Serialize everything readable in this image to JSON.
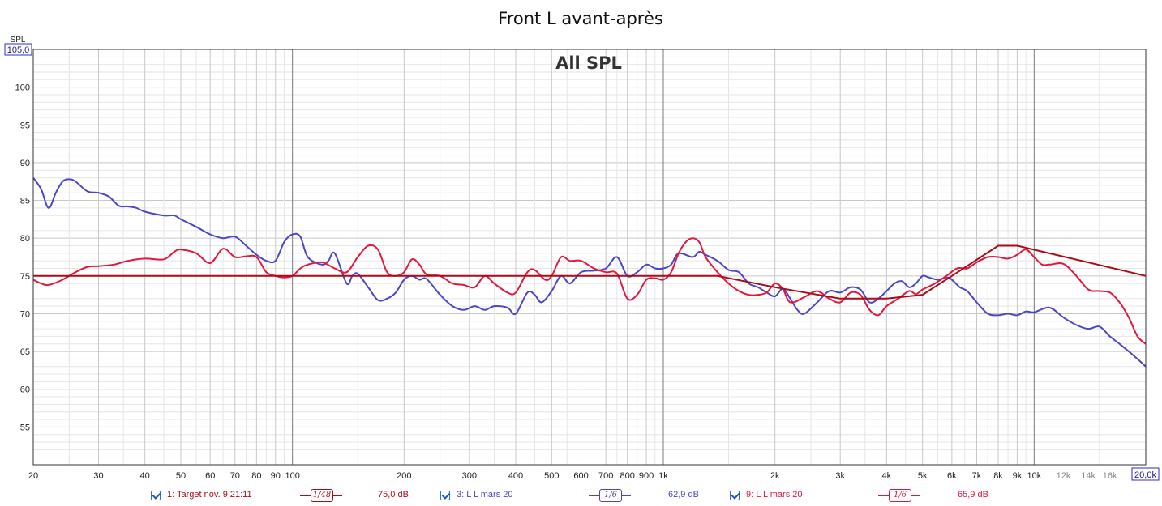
{
  "chart_data": {
    "type": "line",
    "title": "Front L avant-après",
    "subtitle": "All SPL",
    "ylabel": "SPL",
    "ylim": [
      50,
      105
    ],
    "ymax_label": "105,0",
    "xmax_label": "20,0k",
    "xlim": [
      20,
      20000
    ],
    "xscale": "log",
    "grid": true,
    "yticks": [
      {
        "value": 55,
        "label": "55"
      },
      {
        "value": 60,
        "label": "60"
      },
      {
        "value": 65,
        "label": "65"
      },
      {
        "value": 70,
        "label": "70"
      },
      {
        "value": 75,
        "label": "75"
      },
      {
        "value": 80,
        "label": "80"
      },
      {
        "value": 85,
        "label": "85"
      },
      {
        "value": 90,
        "label": "90"
      },
      {
        "value": 95,
        "label": "95"
      },
      {
        "value": 100,
        "label": "100"
      }
    ],
    "xticks": [
      {
        "value": 20,
        "label": "20"
      },
      {
        "value": 30,
        "label": "30"
      },
      {
        "value": 40,
        "label": "40"
      },
      {
        "value": 50,
        "label": "50"
      },
      {
        "value": 60,
        "label": "60"
      },
      {
        "value": 70,
        "label": "70"
      },
      {
        "value": 80,
        "label": "80"
      },
      {
        "value": 90,
        "label": "90"
      },
      {
        "value": 100,
        "label": "100"
      },
      {
        "value": 200,
        "label": "200"
      },
      {
        "value": 300,
        "label": "300"
      },
      {
        "value": 400,
        "label": "400"
      },
      {
        "value": 500,
        "label": "500"
      },
      {
        "value": 600,
        "label": "600"
      },
      {
        "value": 700,
        "label": "700"
      },
      {
        "value": 800,
        "label": "800"
      },
      {
        "value": 900,
        "label": "900"
      },
      {
        "value": 1000,
        "label": "1k"
      },
      {
        "value": 2000,
        "label": "2k"
      },
      {
        "value": 3000,
        "label": "3k"
      },
      {
        "value": 4000,
        "label": "4k"
      },
      {
        "value": 5000,
        "label": "5k"
      },
      {
        "value": 6000,
        "label": "6k"
      },
      {
        "value": 7000,
        "label": "7k"
      },
      {
        "value": 8000,
        "label": "8k"
      },
      {
        "value": 9000,
        "label": "9k"
      },
      {
        "value": 10000,
        "label": "10k"
      },
      {
        "value": 12000,
        "label": "12k",
        "minor": true
      },
      {
        "value": 14000,
        "label": "14k",
        "minor": true
      },
      {
        "value": 16000,
        "label": "16k",
        "minor": true
      }
    ],
    "series": [
      {
        "name": "1: Target nov. 9 21:11",
        "color": "#a80c18",
        "smoothing": "1/48",
        "level": "75,0 dB",
        "points": [
          [
            20,
            75
          ],
          [
            1400,
            75
          ],
          [
            2000,
            73.5
          ],
          [
            3000,
            72
          ],
          [
            4000,
            72
          ],
          [
            5000,
            72.5
          ],
          [
            6000,
            75
          ],
          [
            8000,
            79
          ],
          [
            9000,
            79
          ],
          [
            20000,
            75
          ]
        ]
      },
      {
        "name": "3: L L mars 20",
        "color": "#4b46c8",
        "smoothing": "1/6",
        "level": "62,9 dB",
        "points": [
          [
            20,
            88
          ],
          [
            21,
            86.5
          ],
          [
            22,
            84
          ],
          [
            23,
            86
          ],
          [
            24,
            87.5
          ],
          [
            25,
            87.8
          ],
          [
            26,
            87.5
          ],
          [
            28,
            86.2
          ],
          [
            30,
            86
          ],
          [
            32,
            85.5
          ],
          [
            34,
            84.3
          ],
          [
            36,
            84.2
          ],
          [
            38,
            84
          ],
          [
            40,
            83.5
          ],
          [
            45,
            83
          ],
          [
            48,
            83
          ],
          [
            50,
            82.5
          ],
          [
            55,
            81.5
          ],
          [
            60,
            80.5
          ],
          [
            65,
            80
          ],
          [
            70,
            80.2
          ],
          [
            75,
            79
          ],
          [
            80,
            77.8
          ],
          [
            85,
            77
          ],
          [
            90,
            77
          ],
          [
            95,
            79.5
          ],
          [
            100,
            80.5
          ],
          [
            105,
            80.2
          ],
          [
            110,
            77.5
          ],
          [
            120,
            76.5
          ],
          [
            125,
            77
          ],
          [
            130,
            78
          ],
          [
            140,
            74
          ],
          [
            145,
            75
          ],
          [
            150,
            75.3
          ],
          [
            160,
            73.5
          ],
          [
            170,
            71.8
          ],
          [
            180,
            72
          ],
          [
            190,
            72.8
          ],
          [
            200,
            74.5
          ],
          [
            210,
            75
          ],
          [
            220,
            74.5
          ],
          [
            230,
            74.6
          ],
          [
            250,
            72.5
          ],
          [
            270,
            71
          ],
          [
            290,
            70.5
          ],
          [
            310,
            71
          ],
          [
            330,
            70.5
          ],
          [
            350,
            71
          ],
          [
            380,
            70.8
          ],
          [
            400,
            70
          ],
          [
            430,
            72.8
          ],
          [
            450,
            72.5
          ],
          [
            470,
            71.5
          ],
          [
            500,
            73
          ],
          [
            530,
            75
          ],
          [
            560,
            74
          ],
          [
            600,
            75.5
          ],
          [
            650,
            75.7
          ],
          [
            700,
            76
          ],
          [
            750,
            77.5
          ],
          [
            800,
            75
          ],
          [
            850,
            75.5
          ],
          [
            900,
            76.5
          ],
          [
            950,
            76
          ],
          [
            1000,
            76
          ],
          [
            1050,
            76.5
          ],
          [
            1100,
            78
          ],
          [
            1200,
            77.5
          ],
          [
            1250,
            78.2
          ],
          [
            1300,
            77.8
          ],
          [
            1400,
            77
          ],
          [
            1500,
            75.8
          ],
          [
            1600,
            75.5
          ],
          [
            1700,
            74
          ],
          [
            1800,
            73.5
          ],
          [
            1900,
            72.8
          ],
          [
            2000,
            72.3
          ],
          [
            2100,
            73.3
          ],
          [
            2200,
            72
          ],
          [
            2300,
            70.5
          ],
          [
            2400,
            70
          ],
          [
            2600,
            71.5
          ],
          [
            2800,
            73
          ],
          [
            3000,
            72.8
          ],
          [
            3200,
            73.5
          ],
          [
            3400,
            73.2
          ],
          [
            3600,
            71.5
          ],
          [
            3800,
            72
          ],
          [
            4000,
            73
          ],
          [
            4200,
            74
          ],
          [
            4400,
            74.3
          ],
          [
            4600,
            73.5
          ],
          [
            4800,
            74
          ],
          [
            5000,
            75
          ],
          [
            5200,
            74.8
          ],
          [
            5500,
            74.5
          ],
          [
            5800,
            74.8
          ],
          [
            6000,
            74.5
          ],
          [
            6300,
            73.5
          ],
          [
            6600,
            73
          ],
          [
            7000,
            71.5
          ],
          [
            7500,
            70
          ],
          [
            8000,
            69.8
          ],
          [
            8500,
            70
          ],
          [
            9000,
            69.8
          ],
          [
            9500,
            70.3
          ],
          [
            10000,
            70.2
          ],
          [
            11000,
            70.8
          ],
          [
            12000,
            69.5
          ],
          [
            13000,
            68.5
          ],
          [
            14000,
            68
          ],
          [
            15000,
            68.3
          ],
          [
            16000,
            67
          ],
          [
            17000,
            66
          ],
          [
            18000,
            65
          ],
          [
            19000,
            64
          ],
          [
            20000,
            63
          ]
        ]
      },
      {
        "name": "9: L L mars 20",
        "color": "#e3173c",
        "smoothing": "1/6",
        "level": "65,9 dB",
        "points": [
          [
            20,
            74.5
          ],
          [
            21,
            74
          ],
          [
            22,
            73.8
          ],
          [
            24,
            74.5
          ],
          [
            26,
            75.5
          ],
          [
            28,
            76.2
          ],
          [
            30,
            76.3
          ],
          [
            33,
            76.5
          ],
          [
            36,
            77
          ],
          [
            40,
            77.3
          ],
          [
            45,
            77.2
          ],
          [
            48,
            78.2
          ],
          [
            50,
            78.5
          ],
          [
            55,
            78
          ],
          [
            60,
            76.7
          ],
          [
            65,
            78.6
          ],
          [
            70,
            77.5
          ],
          [
            75,
            77.6
          ],
          [
            80,
            77.5
          ],
          [
            85,
            75.5
          ],
          [
            90,
            75
          ],
          [
            95,
            74.8
          ],
          [
            100,
            75
          ],
          [
            105,
            76
          ],
          [
            110,
            76.5
          ],
          [
            120,
            76.8
          ],
          [
            130,
            76
          ],
          [
            140,
            75.5
          ],
          [
            150,
            77.5
          ],
          [
            160,
            79
          ],
          [
            170,
            78.5
          ],
          [
            180,
            75.5
          ],
          [
            190,
            75
          ],
          [
            200,
            75.5
          ],
          [
            210,
            77.2
          ],
          [
            220,
            76.5
          ],
          [
            230,
            75.2
          ],
          [
            250,
            75
          ],
          [
            270,
            74
          ],
          [
            290,
            73.8
          ],
          [
            310,
            73.5
          ],
          [
            330,
            75
          ],
          [
            350,
            74
          ],
          [
            380,
            72.8
          ],
          [
            400,
            72.8
          ],
          [
            430,
            75.5
          ],
          [
            450,
            75.8
          ],
          [
            480,
            74.5
          ],
          [
            500,
            75
          ],
          [
            530,
            77.5
          ],
          [
            560,
            77
          ],
          [
            600,
            77
          ],
          [
            650,
            76
          ],
          [
            700,
            75.5
          ],
          [
            750,
            75.3
          ],
          [
            800,
            72
          ],
          [
            850,
            72.5
          ],
          [
            900,
            74.5
          ],
          [
            950,
            74.7
          ],
          [
            1000,
            74.5
          ],
          [
            1050,
            75.5
          ],
          [
            1100,
            78
          ],
          [
            1150,
            79.5
          ],
          [
            1200,
            80
          ],
          [
            1250,
            79.5
          ],
          [
            1300,
            77.5
          ],
          [
            1400,
            75.5
          ],
          [
            1500,
            74
          ],
          [
            1600,
            73
          ],
          [
            1700,
            72.5
          ],
          [
            1800,
            72.5
          ],
          [
            1900,
            72.8
          ],
          [
            2000,
            74
          ],
          [
            2100,
            73.3
          ],
          [
            2200,
            71.5
          ],
          [
            2400,
            72.2
          ],
          [
            2600,
            73
          ],
          [
            2800,
            72
          ],
          [
            3000,
            71.5
          ],
          [
            3200,
            72.8
          ],
          [
            3400,
            72.5
          ],
          [
            3600,
            70.5
          ],
          [
            3800,
            69.8
          ],
          [
            4000,
            71
          ],
          [
            4300,
            72
          ],
          [
            4600,
            73
          ],
          [
            4800,
            72.6
          ],
          [
            5000,
            73.2
          ],
          [
            5400,
            74
          ],
          [
            5800,
            75
          ],
          [
            6200,
            76
          ],
          [
            6600,
            76
          ],
          [
            7000,
            76.8
          ],
          [
            7500,
            77.5
          ],
          [
            8000,
            77.5
          ],
          [
            8500,
            77.3
          ],
          [
            9000,
            77.8
          ],
          [
            9500,
            78.5
          ],
          [
            10000,
            77.5
          ],
          [
            10500,
            76.5
          ],
          [
            11000,
            76.5
          ],
          [
            12000,
            76.6
          ],
          [
            13000,
            75
          ],
          [
            14000,
            73.2
          ],
          [
            15000,
            73
          ],
          [
            16000,
            72.8
          ],
          [
            17000,
            71.5
          ],
          [
            18000,
            69.5
          ],
          [
            19000,
            67
          ],
          [
            20000,
            66
          ]
        ]
      }
    ]
  }
}
